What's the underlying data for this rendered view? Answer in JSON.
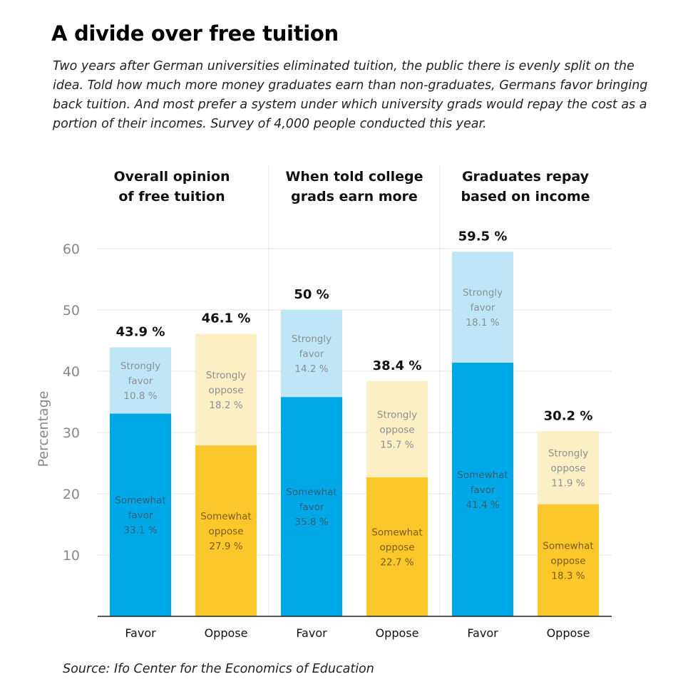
{
  "title": "A divide over free tuition",
  "subtitle": "Two years after German universities eliminated tuition, the public there is evenly split on the idea. Told how much more money graduates earn than non-graduates, Germans favor bringing back tuition. And most prefer a system under which university grads would repay the cost as a portion of their incomes. Survey of 4,000 people conducted this year.",
  "source": "Source: Ifo Center for the Economics of Education",
  "colors": {
    "favor_somewhat": "#00a8e8",
    "favor_strongly": "#bfe6f7",
    "oppose_somewhat": "#fcc72a",
    "oppose_strongly": "#fcefc4",
    "segment_text_dark": "#2f5f74",
    "segment_text_light": "#8a8f94",
    "segment_text_oppose_dark": "#7a5c10"
  },
  "chart_data": {
    "type": "bar",
    "stacked": true,
    "ylabel": "Percentage",
    "ylim": [
      0,
      60
    ],
    "yticks": [
      10,
      20,
      30,
      40,
      50,
      60
    ],
    "grid": true,
    "panels": [
      {
        "title": [
          "Overall opinion",
          "of free tuition"
        ],
        "bars": [
          {
            "category": "Favor",
            "kind": "favor",
            "total": 43.9,
            "total_label": "43.9 %",
            "segments": [
              {
                "label": [
                  "Somewhat",
                  "favor"
                ],
                "value": 33.1,
                "value_label": "33.1 %"
              },
              {
                "label": [
                  "Strongly",
                  "favor"
                ],
                "value": 10.8,
                "value_label": "10.8 %"
              }
            ]
          },
          {
            "category": "Oppose",
            "kind": "oppose",
            "total": 46.1,
            "total_label": "46.1 %",
            "segments": [
              {
                "label": [
                  "Somewhat",
                  "oppose"
                ],
                "value": 27.9,
                "value_label": "27.9 %"
              },
              {
                "label": [
                  "Strongly",
                  "oppose"
                ],
                "value": 18.2,
                "value_label": "18.2 %"
              }
            ]
          }
        ]
      },
      {
        "title": [
          "When told college",
          "grads earn more"
        ],
        "bars": [
          {
            "category": "Favor",
            "kind": "favor",
            "total": 50,
            "total_label": "50 %",
            "segments": [
              {
                "label": [
                  "Somewhat",
                  "favor"
                ],
                "value": 35.8,
                "value_label": "35.8 %"
              },
              {
                "label": [
                  "Strongly",
                  "favor"
                ],
                "value": 14.2,
                "value_label": "14.2 %"
              }
            ]
          },
          {
            "category": "Oppose",
            "kind": "oppose",
            "total": 38.4,
            "total_label": "38.4 %",
            "segments": [
              {
                "label": [
                  "Somewhat",
                  "oppose"
                ],
                "value": 22.7,
                "value_label": "22.7 %"
              },
              {
                "label": [
                  "Strongly",
                  "oppose"
                ],
                "value": 15.7,
                "value_label": "15.7 %"
              }
            ]
          }
        ]
      },
      {
        "title": [
          "Graduates repay",
          "based on income"
        ],
        "bars": [
          {
            "category": "Favor",
            "kind": "favor",
            "total": 59.5,
            "total_label": "59.5 %",
            "segments": [
              {
                "label": [
                  "Somewhat",
                  "favor"
                ],
                "value": 41.4,
                "value_label": "41.4 %"
              },
              {
                "label": [
                  "Strongly",
                  "favor"
                ],
                "value": 18.1,
                "value_label": "18.1 %"
              }
            ]
          },
          {
            "category": "Oppose",
            "kind": "oppose",
            "total": 30.2,
            "total_label": "30.2 %",
            "segments": [
              {
                "label": [
                  "Somewhat",
                  "oppose"
                ],
                "value": 18.3,
                "value_label": "18.3 %"
              },
              {
                "label": [
                  "Strongly",
                  "oppose"
                ],
                "value": 11.9,
                "value_label": "11.9 %"
              }
            ]
          }
        ]
      }
    ]
  }
}
